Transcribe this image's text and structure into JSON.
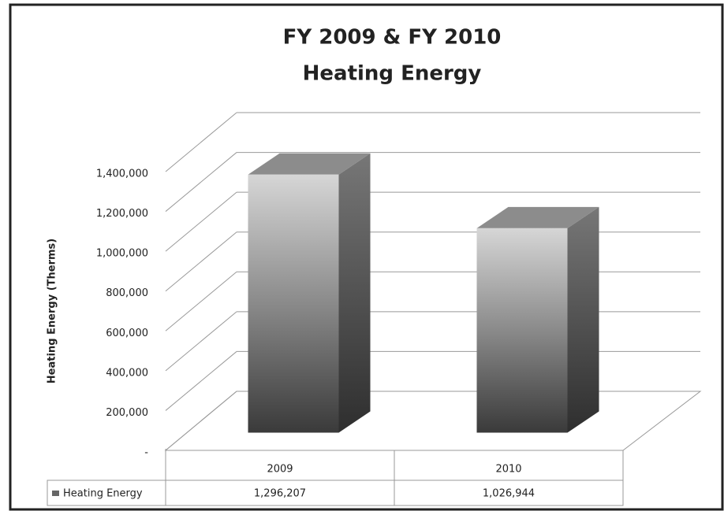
{
  "chart_data": {
    "type": "bar3d",
    "title": [
      "FY 2009 & FY 2010",
      "Heating Energy"
    ],
    "y_label": "Heating Energy (Therms)",
    "categories": [
      "2009",
      "2010"
    ],
    "series": [
      {
        "name": "Heating Energy",
        "color": "#666666",
        "values": [
          1296207,
          1026944
        ],
        "value_labels": [
          "1,296,207",
          "1,026,944"
        ]
      }
    ],
    "ylim": [
      0,
      1400000
    ],
    "yticks": [
      {
        "value": 0,
        "label": "-"
      },
      {
        "value": 200000,
        "label": "200,000"
      },
      {
        "value": 400000,
        "label": "400,000"
      },
      {
        "value": 600000,
        "label": "600,000"
      },
      {
        "value": 800000,
        "label": "800,000"
      },
      {
        "value": 1000000,
        "label": "1,000,000"
      },
      {
        "value": 1200000,
        "label": "1,200,000"
      },
      {
        "value": 1400000,
        "label": "1,400,000"
      }
    ],
    "grid": true
  }
}
